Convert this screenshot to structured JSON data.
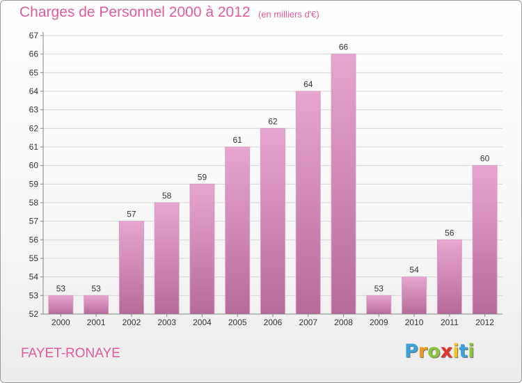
{
  "header": {
    "title": "Charges de Personnel 2000 à 2012",
    "subtitle": "(en milliers d'€)"
  },
  "footer": {
    "commune": "FAYET-RONAYE",
    "logo_text": "Proxiti",
    "logo_letters": [
      "P",
      "r",
      "o",
      "x",
      "i",
      "t",
      "i"
    ],
    "logo_colors": [
      "#3aa1d9",
      "#f29a1c",
      "#8cc43e",
      "#e8332a",
      "#f2c51c",
      "#3aa1d9",
      "#8cc43e"
    ]
  },
  "colors": {
    "title": "#e05a9e",
    "bar_top": "#e7a6cf",
    "bar_bottom": "#b56b9a",
    "grid": "#d6d6d6",
    "axis": "#888888",
    "label": "#333333"
  },
  "chart_data": {
    "type": "bar",
    "title": "Charges de Personnel 2000 à 2012",
    "subtitle": "(en milliers d'€)",
    "xlabel": "",
    "ylabel": "",
    "categories": [
      "2000",
      "2001",
      "2002",
      "2003",
      "2004",
      "2005",
      "2006",
      "2007",
      "2008",
      "2009",
      "2010",
      "2011",
      "2012"
    ],
    "values": [
      53,
      53,
      57,
      58,
      59,
      61,
      62,
      64,
      66,
      53,
      54,
      56,
      60
    ],
    "ylim": [
      52,
      67
    ],
    "yticks": [
      52,
      53,
      54,
      55,
      56,
      57,
      58,
      59,
      60,
      61,
      62,
      63,
      64,
      65,
      66,
      67
    ],
    "grid": true,
    "data_labels": true
  }
}
